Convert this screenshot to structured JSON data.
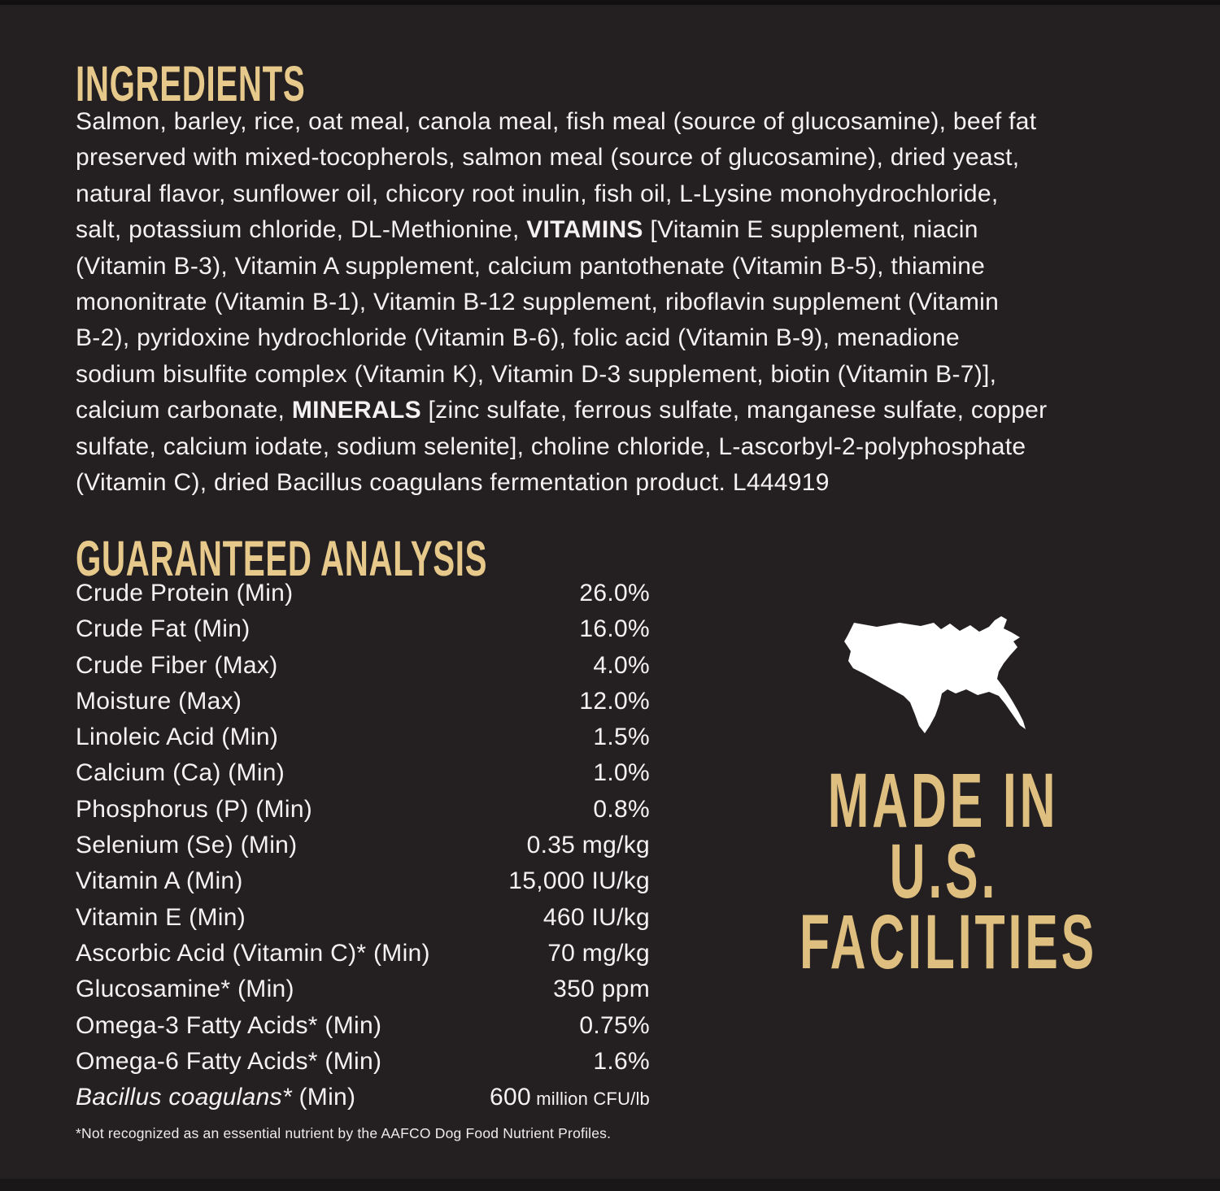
{
  "colors": {
    "background": "#242021",
    "heading_gold": "#e6c98b",
    "made_in_gold": "#debf7f",
    "body_text": "#f3f1f1",
    "map_fill": "#ffffff"
  },
  "ingredients": {
    "heading": "INGREDIENTS",
    "lines": [
      {
        "pre": "Salmon, barley, rice, oat meal, canola meal, fish meal (source of glucosamine), beef fat"
      },
      {
        "pre": "preserved with mixed-tocopherols, salmon meal (source of glucosamine), dried yeast,"
      },
      {
        "pre": "natural flavor, sunflower oil, chicory root inulin, fish oil, L-Lysine monohydrochloride,"
      },
      {
        "pre": "salt, potassium chloride, DL-Methionine, ",
        "bold": "VITAMINS",
        "post": " [Vitamin E supplement, niacin"
      },
      {
        "pre": "(Vitamin B-3), Vitamin A supplement, calcium pantothenate (Vitamin B-5), thiamine"
      },
      {
        "pre": "mononitrate (Vitamin B-1), Vitamin B-12 supplement, riboflavin supplement (Vitamin"
      },
      {
        "pre": "B-2), pyridoxine hydrochloride (Vitamin B-6), folic acid (Vitamin B-9), menadione"
      },
      {
        "pre": "sodium bisulfite complex (Vitamin K), Vitamin D-3 supplement, biotin (Vitamin B-7)],"
      },
      {
        "pre": "calcium carbonate, ",
        "bold": "MINERALS",
        "post": " [zinc sulfate, ferrous sulfate, manganese sulfate, copper"
      },
      {
        "pre": "sulfate, calcium iodate, sodium selenite], choline chloride, L-ascorbyl-2-polyphosphate"
      },
      {
        "pre": "(Vitamin C), dried Bacillus coagulans fermentation product. L444919"
      }
    ]
  },
  "guaranteed_analysis": {
    "heading": "GUARANTEED ANALYSIS",
    "rows": [
      {
        "label": "Crude Protein (Min)",
        "value": "26.0%"
      },
      {
        "label": "Crude Fat (Min)",
        "value": "16.0%"
      },
      {
        "label": "Crude Fiber (Max)",
        "value": "4.0%"
      },
      {
        "label": "Moisture (Max)",
        "value": "12.0%"
      },
      {
        "label": "Linoleic Acid (Min)",
        "value": "1.5%"
      },
      {
        "label": "Calcium (Ca) (Min)",
        "value": "1.0%"
      },
      {
        "label": "Phosphorus (P) (Min)",
        "value": "0.8%"
      },
      {
        "label": "Selenium (Se) (Min)",
        "value": "0.35 mg/kg"
      },
      {
        "label": "Vitamin A (Min)",
        "value": "15,000 IU/kg"
      },
      {
        "label": "Vitamin E (Min)",
        "value": "460 IU/kg"
      },
      {
        "label": "Ascorbic Acid (Vitamin C)* (Min)",
        "value": "70 mg/kg"
      },
      {
        "label": "Glucosamine* (Min)",
        "value": "350 ppm"
      },
      {
        "label": "Omega-3 Fatty Acids* (Min)",
        "value": "0.75%"
      },
      {
        "label": "Omega-6 Fatty Acids* (Min)",
        "value": "1.6%"
      },
      {
        "label_italic": "Bacillus coagulans*",
        "label": " (Min)",
        "value": "600",
        "value_small": " million CFU/lb"
      }
    ],
    "footnote": "*Not recognized as an essential nutrient by the AAFCO Dog Food Nutrient Profiles."
  },
  "made_in": {
    "line1": "MADE IN",
    "line2": "U.S.",
    "line3": "FACILITIES"
  },
  "icons": {
    "us_map": "us-map-silhouette-icon"
  }
}
